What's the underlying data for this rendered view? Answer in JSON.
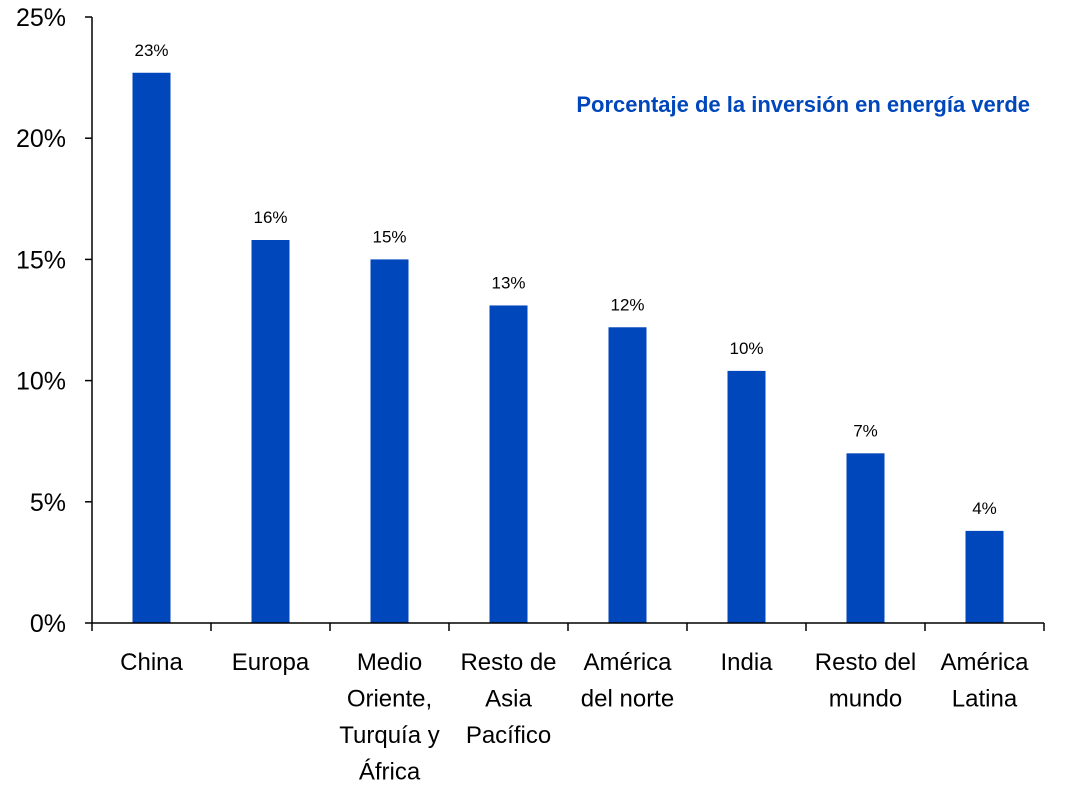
{
  "chart_data": {
    "type": "bar",
    "title": "Porcentaje de la inversión en energía verde",
    "xlabel": "",
    "ylabel": "",
    "ylim": [
      0,
      25
    ],
    "yticks": [
      0,
      5,
      10,
      15,
      20,
      25
    ],
    "ytick_labels": [
      "0%",
      "5%",
      "10%",
      "15%",
      "20%",
      "25%"
    ],
    "categories": [
      [
        "China"
      ],
      [
        "Europa"
      ],
      [
        "Medio",
        "Oriente,",
        "Turquía y",
        "África"
      ],
      [
        "Resto de",
        "Asia",
        "Pacífico"
      ],
      [
        "América",
        "del norte"
      ],
      [
        "India"
      ],
      [
        "Resto del",
        "mundo"
      ],
      [
        "América",
        "Latina"
      ]
    ],
    "values": [
      22.7,
      15.8,
      15.0,
      13.1,
      12.2,
      10.4,
      7.0,
      3.8
    ],
    "data_labels": [
      "23%",
      "16%",
      "15%",
      "13%",
      "12%",
      "10%",
      "7%",
      "4%"
    ],
    "grid": false,
    "legend": "none",
    "colors": {
      "bar": "#0047BB",
      "title": "#0047BB",
      "axis": "#000000"
    }
  }
}
